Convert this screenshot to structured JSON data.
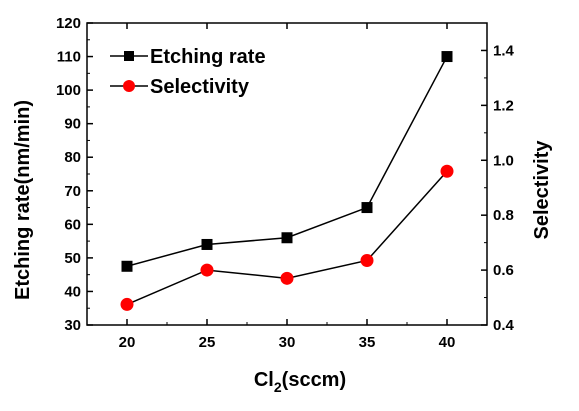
{
  "chart_data": {
    "type": "line",
    "x": [
      20,
      25,
      30,
      35,
      40
    ],
    "series": [
      {
        "name": "Etching rate",
        "axis": "left",
        "marker": "square",
        "color": "#000000",
        "values": [
          47.5,
          54,
          56,
          65,
          110
        ]
      },
      {
        "name": "Selectivity",
        "axis": "right",
        "marker": "circle",
        "color": "#ff0000",
        "line_color": "#000000",
        "values": [
          0.475,
          0.6,
          0.57,
          0.635,
          0.96
        ]
      }
    ],
    "xlabel_main": "Cl",
    "xlabel_sub": "2",
    "xlabel_tail": "(sccm)",
    "ylabel_left": "Etching rate(nm/min)",
    "ylabel_right": "Selectivity",
    "xlim": [
      17.5,
      42.5
    ],
    "ylim_left": [
      30,
      120
    ],
    "ylim_right": [
      0.4,
      1.5
    ],
    "x_ticks": [
      20,
      25,
      30,
      35,
      40
    ],
    "y_ticks_left": [
      30,
      40,
      50,
      60,
      70,
      80,
      90,
      100,
      110,
      120
    ],
    "y_ticks_right": [
      "0.4",
      "0.6",
      "0.8",
      "1.0",
      "1.2",
      "1.4"
    ],
    "legend_position": "top-left",
    "grid": false
  }
}
